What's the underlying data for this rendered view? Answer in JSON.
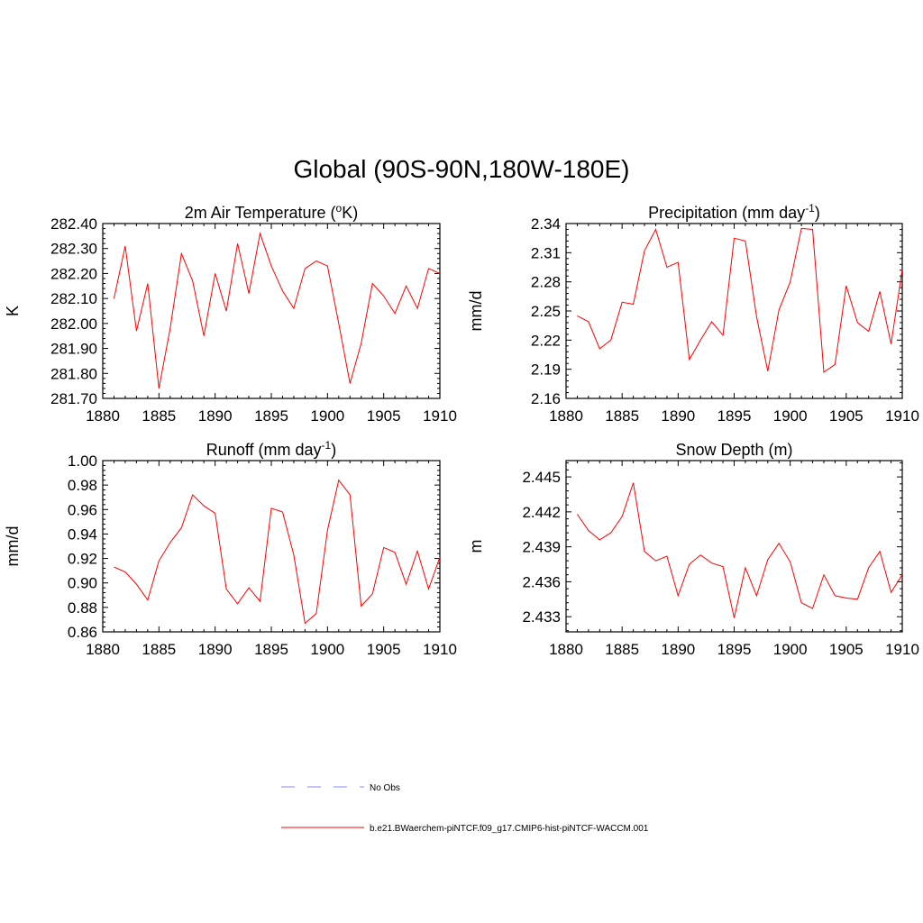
{
  "title": "Global (90S-90N,180W-180E)",
  "colors": {
    "model": "#ff0000",
    "obs": "#a0a0f0",
    "axis": "#000000"
  },
  "legend": {
    "obs_label": "No Obs",
    "model_label": "b.e21.BWaerchem-piNTCF.f09_g17.CMIP6-hist-piNTCF-WACCM.001"
  },
  "chart_data": [
    {
      "type": "line",
      "title": "2m Air Temperature (",
      "title_sup": "o",
      "title_tail": "K)",
      "ylabel": "K",
      "xlim": [
        1880,
        1910
      ],
      "ylim": [
        281.7,
        282.4
      ],
      "x_ticks": [
        1880,
        1885,
        1890,
        1895,
        1900,
        1905,
        1910
      ],
      "y_ticks": [
        "281.70",
        "281.80",
        "281.90",
        "282.00",
        "282.10",
        "282.20",
        "282.30",
        "282.40"
      ],
      "y_tick_values": [
        281.7,
        281.8,
        281.9,
        282.0,
        282.1,
        282.2,
        282.3,
        282.4
      ],
      "x": [
        1881,
        1882,
        1883,
        1884,
        1885,
        1886,
        1887,
        1888,
        1889,
        1890,
        1891,
        1892,
        1893,
        1894,
        1895,
        1896,
        1897,
        1898,
        1899,
        1900,
        1901,
        1902,
        1903,
        1904,
        1905,
        1906,
        1907,
        1908,
        1909,
        1910
      ],
      "series": [
        {
          "values": [
            282.1,
            282.31,
            281.97,
            282.16,
            281.74,
            281.98,
            282.28,
            282.17,
            281.95,
            282.2,
            282.05,
            282.32,
            282.12,
            282.36,
            282.23,
            282.13,
            282.06,
            282.22,
            282.25,
            282.23,
            282.0,
            281.76,
            281.92,
            282.16,
            282.11,
            282.04,
            282.15,
            282.06,
            282.22,
            282.2
          ]
        }
      ]
    },
    {
      "type": "line",
      "title": "Precipitation (mm day",
      "title_sup": "-1",
      "title_tail": ")",
      "ylabel": "mm/d",
      "xlim": [
        1880,
        1910
      ],
      "ylim": [
        2.16,
        2.34
      ],
      "x_ticks": [
        1880,
        1885,
        1890,
        1895,
        1900,
        1905,
        1910
      ],
      "y_ticks": [
        "2.16",
        "2.19",
        "2.22",
        "2.25",
        "2.28",
        "2.31",
        "2.34"
      ],
      "y_tick_values": [
        2.16,
        2.19,
        2.22,
        2.25,
        2.28,
        2.31,
        2.34
      ],
      "x": [
        1881,
        1882,
        1883,
        1884,
        1885,
        1886,
        1887,
        1888,
        1889,
        1890,
        1891,
        1892,
        1893,
        1894,
        1895,
        1896,
        1897,
        1898,
        1899,
        1900,
        1901,
        1902,
        1903,
        1904,
        1905,
        1906,
        1907,
        1908,
        1909,
        1910
      ],
      "series": [
        {
          "values": [
            2.245,
            2.239,
            2.211,
            2.22,
            2.259,
            2.257,
            2.312,
            2.334,
            2.295,
            2.3,
            2.2,
            2.22,
            2.239,
            2.225,
            2.325,
            2.322,
            2.244,
            2.188,
            2.251,
            2.28,
            2.335,
            2.334,
            2.187,
            2.195,
            2.276,
            2.238,
            2.229,
            2.27,
            2.216,
            2.293
          ]
        }
      ]
    },
    {
      "type": "line",
      "title": "Runoff (mm day",
      "title_sup": "-1",
      "title_tail": ")",
      "ylabel": "mm/d",
      "xlim": [
        1880,
        1910
      ],
      "ylim": [
        0.86,
        1.0
      ],
      "x_ticks": [
        1880,
        1885,
        1890,
        1895,
        1900,
        1905,
        1910
      ],
      "y_ticks": [
        "0.86",
        "0.88",
        "0.90",
        "0.92",
        "0.94",
        "0.96",
        "0.98",
        "1.00"
      ],
      "y_tick_values": [
        0.86,
        0.88,
        0.9,
        0.92,
        0.94,
        0.96,
        0.98,
        1.0
      ],
      "x": [
        1881,
        1882,
        1883,
        1884,
        1885,
        1886,
        1887,
        1888,
        1889,
        1890,
        1891,
        1892,
        1893,
        1894,
        1895,
        1896,
        1897,
        1898,
        1899,
        1900,
        1901,
        1902,
        1903,
        1904,
        1905,
        1906,
        1907,
        1908,
        1909,
        1910
      ],
      "series": [
        {
          "values": [
            0.913,
            0.909,
            0.899,
            0.886,
            0.918,
            0.933,
            0.945,
            0.972,
            0.963,
            0.957,
            0.895,
            0.883,
            0.896,
            0.885,
            0.961,
            0.958,
            0.923,
            0.867,
            0.875,
            0.943,
            0.984,
            0.972,
            0.881,
            0.891,
            0.929,
            0.925,
            0.899,
            0.926,
            0.895,
            0.921
          ]
        }
      ]
    },
    {
      "type": "line",
      "title": "Snow Depth (m)",
      "title_sup": "",
      "title_tail": "",
      "ylabel": "m",
      "xlim": [
        1880,
        1910
      ],
      "ylim": [
        2.4317,
        2.4464
      ],
      "x_ticks": [
        1880,
        1885,
        1890,
        1895,
        1900,
        1905,
        1910
      ],
      "y_ticks": [
        "2.433",
        "2.436",
        "2.439",
        "2.442",
        "2.445"
      ],
      "y_tick_values": [
        2.433,
        2.436,
        2.439,
        2.442,
        2.445
      ],
      "x": [
        1881,
        1882,
        1883,
        1884,
        1885,
        1886,
        1887,
        1888,
        1889,
        1890,
        1891,
        1892,
        1893,
        1894,
        1895,
        1896,
        1897,
        1898,
        1899,
        1900,
        1901,
        1902,
        1903,
        1904,
        1905,
        1906,
        1907,
        1908,
        1909,
        1910
      ],
      "series": [
        {
          "values": [
            2.4418,
            2.4404,
            2.4396,
            2.4402,
            2.4416,
            2.4445,
            2.4386,
            2.4378,
            2.4382,
            2.4348,
            2.4375,
            2.4383,
            2.4376,
            2.4373,
            2.4329,
            2.4372,
            2.4348,
            2.4379,
            2.4393,
            2.4377,
            2.4342,
            2.4337,
            2.4366,
            2.4348,
            2.4346,
            2.4345,
            2.4372,
            2.4386,
            2.4351,
            2.4366
          ]
        }
      ]
    }
  ]
}
